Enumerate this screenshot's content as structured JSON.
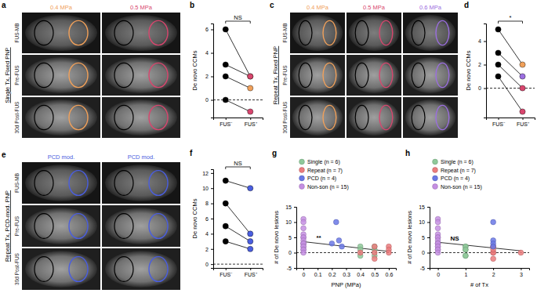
{
  "image_panels": [
    {
      "label": "a",
      "row_title": "Single Tx, Fixed PNP",
      "rows": [
        "FUS-MB",
        "Pre-FUS",
        "30d Post-FUS"
      ],
      "columns": [
        {
          "text": "0.4 MPa",
          "color": "#f0a05a"
        },
        {
          "text": "0.5 MPa",
          "color": "#d8466e"
        }
      ]
    },
    {
      "label": "c",
      "row_title": "Repeat Tx, Fixed PNP",
      "rows": [
        "FUS-MB",
        "Pre-FUS",
        "30d Post-FUS"
      ],
      "columns": [
        {
          "text": "0.4 MPa",
          "color": "#f0a05a"
        },
        {
          "text": "0.5 MPa",
          "color": "#d8466e"
        },
        {
          "text": "0.6 MPa",
          "color": "#9b6ee0"
        }
      ]
    },
    {
      "label": "e",
      "row_title": "Repeat Tx, PCD-mod. PNP",
      "rows": [
        "FUS-MB",
        "Pre-FUS",
        "30d Post-FUS"
      ],
      "columns": [
        {
          "text": "PCD mod.",
          "color": "#4a5ee0"
        },
        {
          "text": "PCD mod.",
          "color": "#4a5ee0"
        }
      ]
    }
  ],
  "chart_data": [
    {
      "panel": "b",
      "type": "paired",
      "y_label": "De novo CCMs",
      "categories": [
        "FUS⁻",
        "FUS⁺"
      ],
      "ylim": [
        -1.5,
        6.5
      ],
      "yticks": [
        0,
        2,
        4,
        6
      ],
      "baseline": 0,
      "annotation": "NS",
      "pairs": [
        {
          "values": [
            6,
            2
          ],
          "colors": [
            "#000000",
            "#f0a05a"
          ]
        },
        {
          "values": [
            3,
            2
          ],
          "colors": [
            "#000000",
            "#d8466e"
          ]
        },
        {
          "values": [
            2,
            1
          ],
          "colors": [
            "#000000",
            "#f0a05a"
          ]
        },
        {
          "values": [
            0,
            -1
          ],
          "colors": [
            "#000000",
            "#d8466e"
          ]
        }
      ]
    },
    {
      "panel": "d",
      "type": "paired",
      "y_label": "De novo CCMs",
      "categories": [
        "FUS⁻",
        "FUS⁺"
      ],
      "ylim": [
        -2.5,
        5.5
      ],
      "yticks": [
        0,
        2,
        4
      ],
      "baseline": 0,
      "annotation": "*",
      "pairs": [
        {
          "values": [
            5,
            2
          ],
          "colors": [
            "#000000",
            "#f0a05a"
          ]
        },
        {
          "values": [
            3,
            1
          ],
          "colors": [
            "#000000",
            "#9b6ee0"
          ]
        },
        {
          "values": [
            2,
            0
          ],
          "colors": [
            "#000000",
            "#d8466e"
          ]
        },
        {
          "values": [
            1,
            -2
          ],
          "colors": [
            "#000000",
            "#d8466e"
          ]
        }
      ]
    },
    {
      "panel": "f",
      "type": "paired",
      "y_label": "De novo CCMs",
      "categories": [
        "FUS⁻",
        "FUS⁺"
      ],
      "ylim": [
        -0.5,
        12.5
      ],
      "yticks": [
        0,
        2,
        4,
        6,
        8,
        10,
        12
      ],
      "baseline": 0,
      "annotation": "NS",
      "pairs": [
        {
          "values": [
            11,
            10
          ],
          "colors": [
            "#000000",
            "#4a5ee0"
          ]
        },
        {
          "values": [
            8,
            4
          ],
          "colors": [
            "#000000",
            "#4a5ee0"
          ]
        },
        {
          "values": [
            5,
            3
          ],
          "colors": [
            "#000000",
            "#4a5ee0"
          ]
        },
        {
          "values": [
            3,
            2
          ],
          "colors": [
            "#000000",
            "#4a5ee0"
          ]
        }
      ]
    },
    {
      "panel": "g",
      "type": "scatter",
      "x_label": "PNP (MPa)",
      "y_label": "# of De novo lesions",
      "xlim": [
        -0.05,
        0.65
      ],
      "xticks": [
        0,
        0.1,
        0.2,
        0.3,
        0.4,
        0.5,
        0.6
      ],
      "ylim": [
        -5,
        15
      ],
      "yticks": [
        -5,
        0,
        5,
        10,
        15
      ],
      "baseline": 0,
      "annotation": "**",
      "legend": "upper left",
      "series": [
        {
          "name": "Single (n = 6)",
          "color": "#8fc99a",
          "x": [
            0.4,
            0.4,
            0.4,
            0.5,
            0.5,
            0.5
          ],
          "values": [
            2,
            1,
            -1,
            2,
            1,
            -1
          ]
        },
        {
          "name": "Repeat (n = 7)",
          "color": "#ec7c7e",
          "x": [
            0.4,
            0.5,
            0.5,
            0.5,
            0.6,
            0.6,
            0.6
          ],
          "values": [
            0,
            2,
            0,
            -2,
            2,
            1,
            0
          ]
        },
        {
          "name": "PCD (n = 4)",
          "color": "#6a78e6",
          "x": [
            0.23,
            0.25,
            0.2,
            0.27
          ],
          "values": [
            10,
            4,
            3,
            2
          ]
        },
        {
          "name": "Non-son (n = 15)",
          "color": "#c58fe3",
          "x": [
            0,
            0,
            0,
            0,
            0,
            0,
            0,
            0,
            0,
            0,
            0,
            0,
            0,
            0,
            0
          ],
          "values": [
            11,
            10,
            8,
            6,
            5,
            5,
            4,
            3,
            3,
            3,
            2,
            2,
            1,
            1,
            0
          ]
        },
        {
          "type": "line",
          "color": "#333333",
          "x": [
            0,
            0.6
          ],
          "values": [
            3.6,
            0.4
          ]
        }
      ]
    },
    {
      "panel": "h",
      "type": "scatter",
      "x_label": "# of Tx",
      "y_label": "# of De novo lesions",
      "xlim": [
        -0.3,
        3.3
      ],
      "xticks": [
        0,
        1,
        2,
        3
      ],
      "ylim": [
        -5,
        15
      ],
      "yticks": [
        -5,
        0,
        5,
        10,
        15
      ],
      "baseline": 0,
      "annotation": "NS",
      "legend": "upper left",
      "series": [
        {
          "name": "Single (n = 6)",
          "color": "#8fc99a",
          "x": [
            1,
            1,
            1,
            1,
            1,
            1
          ],
          "values": [
            2,
            1,
            -1,
            2,
            1,
            -1
          ]
        },
        {
          "name": "Repeat (n = 7)",
          "color": "#ec7c7e",
          "x": [
            2,
            2,
            2,
            2,
            2,
            2,
            3
          ],
          "values": [
            0,
            2,
            0,
            -2,
            2,
            1,
            0
          ]
        },
        {
          "name": "PCD (n = 4)",
          "color": "#6a78e6",
          "x": [
            2,
            2,
            2,
            2
          ],
          "values": [
            10,
            4,
            3,
            2
          ]
        },
        {
          "name": "Non-son (n = 15)",
          "color": "#c58fe3",
          "x": [
            0,
            0,
            0,
            0,
            0,
            0,
            0,
            0,
            0,
            0,
            0,
            0,
            0,
            0,
            0
          ],
          "values": [
            11,
            10,
            8,
            6,
            5,
            5,
            4,
            3,
            3,
            3,
            2,
            2,
            1,
            1,
            0
          ]
        },
        {
          "type": "line",
          "color": "#333333",
          "x": [
            0,
            3
          ],
          "values": [
            3.4,
            0.6
          ]
        }
      ]
    }
  ]
}
